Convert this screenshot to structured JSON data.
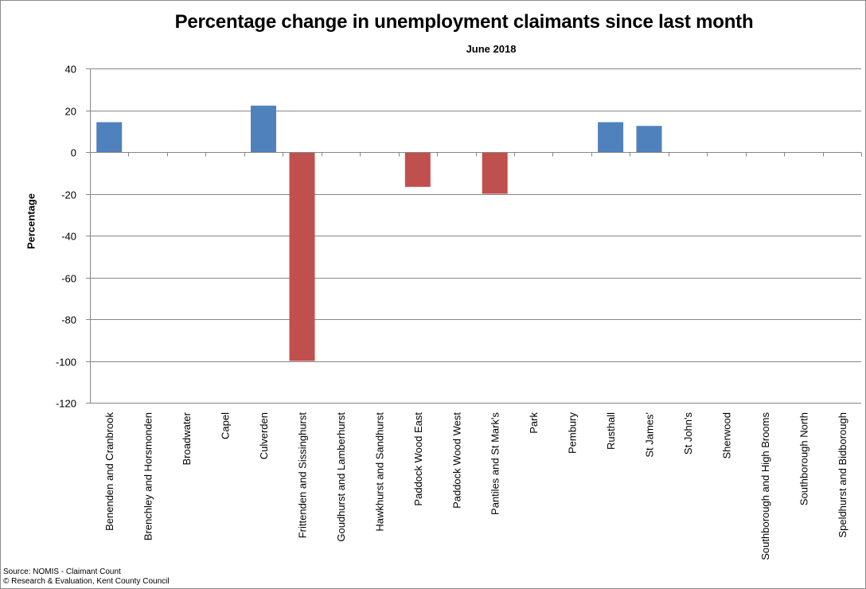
{
  "chart_data": {
    "type": "bar",
    "title": "Percentage change in unemployment claimants since last month",
    "subtitle": "June 2018",
    "xlabel": "",
    "ylabel": "Percentage",
    "ylim": [
      -120,
      40
    ],
    "yticks": [
      40,
      20,
      0,
      -20,
      -40,
      -60,
      -80,
      -100,
      -120
    ],
    "grid": true,
    "colors": {
      "positive": "#4f81bd",
      "negative": "#c0504d",
      "grid": "#868686",
      "axis": "#868686"
    },
    "categories": [
      "Benenden and Cranbrook",
      "Brenchley and Horsmonden",
      "Broadwater",
      "Capel",
      "Culverden",
      "Frittenden and Sissinghurst",
      "Goudhurst and Lamberhurst",
      "Hawkhurst and Sandhurst",
      "Paddock Wood East",
      "Paddock Wood West",
      "Pantiles and St Mark's",
      "Park",
      "Pembury",
      "Rusthall",
      "St James'",
      "St John's",
      "Sherwood",
      "Southborough and High Brooms",
      "Southborough North",
      "Speldhurst and Bidborough"
    ],
    "values": [
      14.3,
      0,
      0,
      0,
      22.2,
      -100,
      0,
      0,
      -16.7,
      0,
      -20,
      0,
      0,
      14.3,
      12.5,
      0,
      0,
      0,
      0,
      0
    ]
  },
  "footer": {
    "source": "Source: NOMIS - Claimant Count",
    "copyright": "© Research & Evaluation, Kent County Council"
  }
}
